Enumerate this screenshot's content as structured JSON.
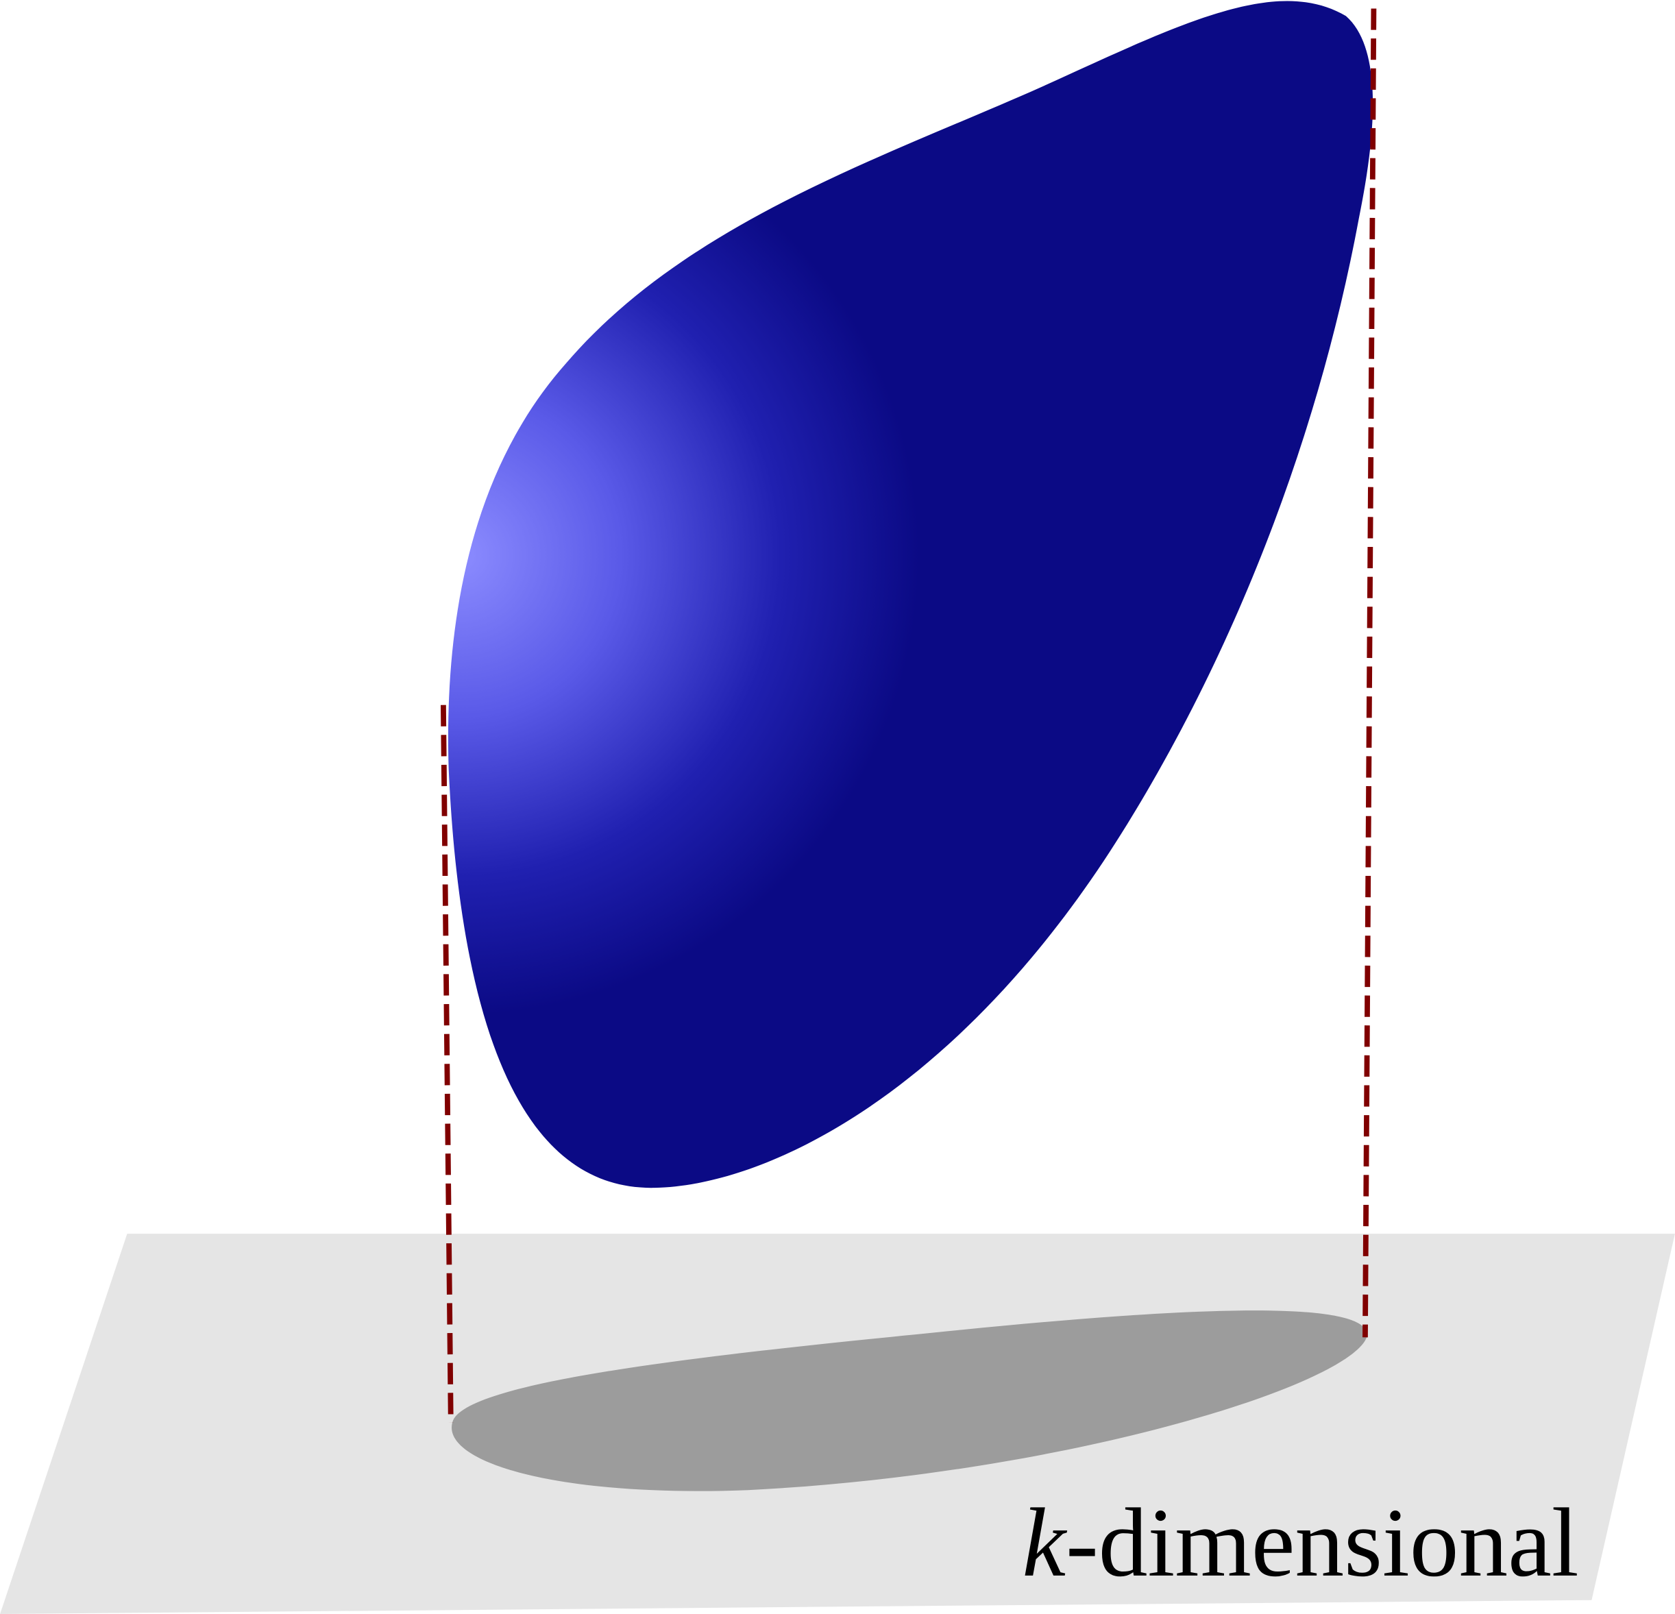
{
  "label": {
    "variable": "k",
    "text": "-dimensional"
  }
}
